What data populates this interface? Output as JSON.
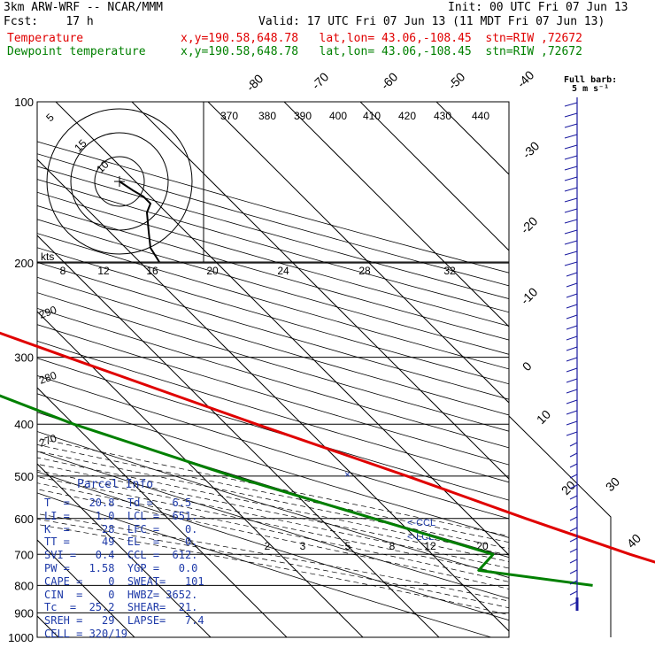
{
  "header": {
    "model": "3km ARW-WRF -- NCAR/MMM",
    "init": "Init: 00 UTC Fri 07 Jun 13",
    "fcst": "Fcst:    17 h",
    "valid": "Valid: 17 UTC Fri 07 Jun 13 (11 MDT Fri 07 Jun 13)",
    "temp_label": "Temperature",
    "temp_info": "x,y=190.58,648.78   lat,lon= 43.06,-108.45  stn=RIW ,72672",
    "dew_label": "Dewpoint temperature",
    "dew_info": "x,y=190.58,648.78   lat,lon= 43.06,-108.45  stn=RIW ,72672"
  },
  "barb_note": {
    "line1": "Full barb:",
    "line2": "5 m s⁻¹"
  },
  "hodograph": {
    "kts_label": "kts",
    "ring_labels": [
      "5",
      "10",
      "15"
    ]
  },
  "parcel_info": {
    "title": "Parcel Info",
    "rows": [
      "T  =   20.8  Td =   6.5",
      "LI =    1.0  LCL =  651.",
      "K  =     28  LFC =    0.",
      "TT =     49  EL  =    0.",
      "SVI =   0.4  CCL =  612.",
      "PW =   1.58  YGP =   0.0",
      "CAPE =    0  SWEAT=   101",
      "CIN  =    0  HWBZ= 3652.",
      "Tc  =  25.2  SHEAR=  21.",
      "SREH =   29  LAPSE=   7.4",
      "CELL = 320/19"
    ]
  },
  "annotations": {
    "ccl": "<-CCL",
    "lcl": "<-LCL"
  },
  "colors": {
    "temperature": "#e00000",
    "dewpoint": "#008000",
    "info": "#1e3aa8",
    "barbs": "#1a1aa0"
  },
  "chart_data": {
    "type": "line",
    "xlabel": "",
    "ylabel": "",
    "pressure_ticks": [
      100,
      200,
      300,
      400,
      500,
      600,
      700,
      800,
      900,
      1000
    ],
    "isotherm_labels": [
      "-80",
      "-70",
      "-60",
      "-50",
      "-40",
      "-30",
      "-20",
      "-10",
      "0",
      "10",
      "20",
      "30",
      "40"
    ],
    "dry_adiabat_labels": [
      "290",
      "280",
      "270"
    ],
    "theta_e_labels": [
      "370",
      "380",
      "390",
      "400",
      "410",
      "420",
      "430",
      "440"
    ],
    "mixing_ratio_labels": [
      "2",
      "3",
      "5",
      "8",
      "12",
      "20"
    ],
    "upper_scale_labels": [
      "8",
      "12",
      "16",
      "20",
      "24",
      "28",
      "32"
    ],
    "series": [
      {
        "name": "Temperature",
        "points": [
          [
            100,
            -52
          ],
          [
            150,
            -54
          ],
          [
            200,
            -58
          ],
          [
            250,
            -52
          ],
          [
            300,
            -42
          ],
          [
            400,
            -26
          ],
          [
            500,
            -13
          ],
          [
            600,
            -3
          ],
          [
            700,
            6
          ],
          [
            800,
            15
          ],
          [
            820,
            19
          ]
        ]
      },
      {
        "name": "Dewpoint temperature",
        "points": [
          [
            100,
            -77
          ],
          [
            160,
            -85
          ],
          [
            200,
            -74
          ],
          [
            250,
            -70
          ],
          [
            300,
            -64
          ],
          [
            400,
            -50
          ],
          [
            500,
            -36
          ],
          [
            600,
            -23
          ],
          [
            700,
            -12
          ],
          [
            750,
            -16
          ],
          [
            800,
            -3
          ]
        ]
      }
    ]
  }
}
